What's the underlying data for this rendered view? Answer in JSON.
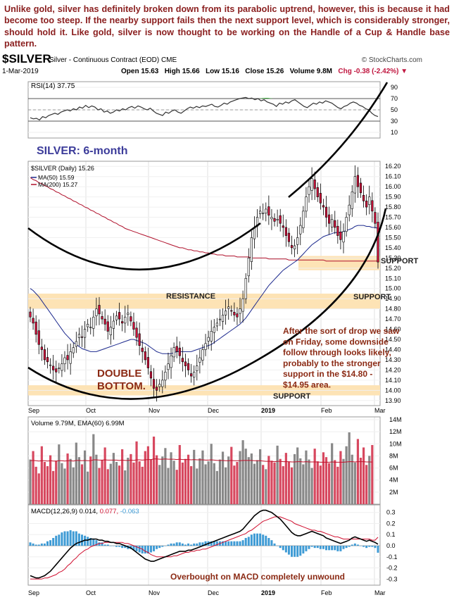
{
  "commentary": "Unlike gold, silver has definitely broken down from its parabolic uptrend, however, this is because it had become too steep. If the nearby support fails then the next support level, which is considerably stronger, should hold it. Like gold, silver is now thought to be working on the Handle of a Cup & Handle base pattern.",
  "header": {
    "symbol": "$SILVER",
    "description": "Silver - Continuous Contract (EOD) CME",
    "brand": "© StockCharts.com",
    "date": "1-Mar-2019",
    "ohlc": {
      "open": "Open 15.63",
      "high": "High 15.66",
      "low": "Low 15.16",
      "close": "Close 15.26",
      "volume": "Volume 9.8M",
      "change": "Chg -0.38 (-2.42%)"
    }
  },
  "annotations": {
    "chart_title": "SILVER: 6-month",
    "double_bottom_1": "DOUBLE",
    "double_bottom_2": "BOTTOM.",
    "resistance": "RESISTANCE",
    "support_top": "SUPPORT",
    "support_mid": "SUPPORT",
    "support_bottom": "SUPPORT",
    "commentary_lines": [
      "After the sort of drop we saw",
      "on Friday, some downside",
      "follow through looks likely,",
      "probably to the stronger",
      "support in the $14.80 -",
      "$14.95 area."
    ],
    "macd_note": "Overbought on MACD completely unwound"
  },
  "colors": {
    "annotation_brown": "#8b2a14",
    "title_blue": "#3c3c9a",
    "support_band": "#fde3b5",
    "up_candle": "#ffffff",
    "down_candle": "#d0103a",
    "ma50": "#1d2a8e",
    "ma200": "#b0102b",
    "volume_up": "#888888",
    "volume_down": "#d7485f",
    "histogram": "#3f9bd5"
  },
  "chart_data": [
    {
      "type": "line",
      "panel": "RSI",
      "legend": "RSI(14) 37.75",
      "yticks": [
        10,
        30,
        50,
        70,
        90
      ],
      "ylim": [
        0,
        100
      ],
      "reference_levels": [
        70,
        50,
        30
      ],
      "values": [
        36,
        34,
        35,
        32,
        38,
        36,
        40,
        42,
        44,
        42,
        46,
        48,
        50,
        48,
        52,
        50,
        55,
        53,
        58,
        54,
        57,
        55,
        50,
        52,
        46,
        48,
        44,
        46,
        50,
        48,
        52,
        50,
        54,
        56,
        53,
        57,
        55,
        52,
        50,
        53,
        48,
        44,
        42,
        40,
        46,
        44,
        48,
        50,
        46,
        44,
        48,
        52,
        55,
        53,
        56,
        54,
        57,
        56,
        58,
        60,
        56,
        55,
        58,
        62,
        60,
        64,
        66,
        68,
        70,
        71,
        72,
        70,
        71,
        68,
        70,
        66,
        68,
        64,
        62,
        60,
        56,
        62,
        60,
        64,
        62,
        66,
        68,
        64,
        60,
        56,
        54,
        58,
        62,
        60,
        64,
        62,
        66,
        64,
        62,
        58,
        54,
        52,
        56,
        58,
        62,
        64,
        62,
        58,
        56,
        52,
        50,
        44,
        40,
        38
      ]
    },
    {
      "type": "candlestick",
      "panel": "Price",
      "legend": [
        "$SILVER (Daily) 15.26",
        "MA(50) 15.59",
        "MA(200) 15.27"
      ],
      "ylim": [
        13.85,
        16.25
      ],
      "yticks": [
        13.9,
        14.0,
        14.1,
        14.2,
        14.3,
        14.4,
        14.5,
        14.6,
        14.7,
        14.8,
        14.9,
        15.0,
        15.1,
        15.2,
        15.3,
        15.4,
        15.5,
        15.6,
        15.7,
        15.8,
        15.9,
        16.0,
        16.1,
        16.2
      ],
      "xticks": [
        "Sep",
        "Oct",
        "Nov",
        "Dec",
        "2019",
        "Feb",
        "Mar"
      ],
      "closes": [
        14.72,
        14.66,
        14.55,
        14.45,
        14.4,
        14.3,
        14.28,
        14.25,
        14.2,
        14.18,
        14.22,
        14.26,
        14.32,
        14.3,
        14.38,
        14.42,
        14.48,
        14.55,
        14.52,
        14.6,
        14.65,
        14.62,
        14.72,
        14.8,
        14.75,
        14.7,
        14.65,
        14.58,
        14.62,
        14.68,
        14.73,
        14.7,
        14.66,
        14.72,
        14.76,
        14.68,
        14.6,
        14.52,
        14.44,
        14.38,
        14.3,
        14.22,
        14.12,
        14.02,
        14.0,
        14.06,
        14.1,
        14.18,
        14.26,
        14.34,
        14.42,
        14.38,
        14.34,
        14.28,
        14.24,
        14.2,
        14.14,
        14.18,
        14.24,
        14.32,
        14.4,
        14.46,
        14.52,
        14.58,
        14.62,
        14.66,
        14.7,
        14.74,
        14.78,
        14.82,
        14.78,
        14.74,
        14.72,
        14.8,
        14.9,
        15.1,
        15.3,
        15.5,
        15.6,
        15.7,
        15.76,
        15.74,
        15.78,
        15.72,
        15.7,
        15.66,
        15.68,
        15.64,
        15.6,
        15.52,
        15.46,
        15.4,
        15.42,
        15.5,
        15.62,
        15.76,
        15.9,
        16.0,
        16.08,
        15.98,
        15.9,
        15.84,
        15.8,
        15.7,
        15.64,
        15.68,
        15.6,
        15.52,
        15.48,
        15.56,
        15.7,
        15.82,
        15.95,
        16.1,
        16.0,
        15.94,
        15.86,
        15.8,
        15.9,
        15.76,
        15.64,
        15.26
      ],
      "ma50": [
        15.0,
        14.98,
        14.95,
        14.92,
        14.88,
        14.84,
        14.8,
        14.76,
        14.72,
        14.68,
        14.64,
        14.6,
        14.56,
        14.53,
        14.5,
        14.47,
        14.45,
        14.43,
        14.41,
        14.4,
        14.39,
        14.38,
        14.38,
        14.38,
        14.39,
        14.4,
        14.41,
        14.42,
        14.43,
        14.44,
        14.45,
        14.46,
        14.47,
        14.48,
        14.49,
        14.5,
        14.5,
        14.49,
        14.48,
        14.47,
        14.46,
        14.44,
        14.42,
        14.4,
        14.38,
        14.37,
        14.36,
        14.36,
        14.36,
        14.36,
        14.37,
        14.38,
        14.38,
        14.38,
        14.38,
        14.38,
        14.38,
        14.39,
        14.4,
        14.41,
        14.42,
        14.43,
        14.44,
        14.45,
        14.47,
        14.49,
        14.51,
        14.53,
        14.55,
        14.57,
        14.59,
        14.61,
        14.63,
        14.65,
        14.68,
        14.71,
        14.75,
        14.79,
        14.83,
        14.87,
        14.91,
        14.95,
        14.99,
        15.03,
        15.06,
        15.09,
        15.12,
        15.15,
        15.18,
        15.2,
        15.22,
        15.24,
        15.26,
        15.28,
        15.31,
        15.34,
        15.37,
        15.4,
        15.43,
        15.45,
        15.47,
        15.49,
        15.51,
        15.52,
        15.53,
        15.54,
        15.55,
        15.55,
        15.55,
        15.56,
        15.57,
        15.58,
        15.59,
        15.61,
        15.62,
        15.62,
        15.62,
        15.61,
        15.61,
        15.6,
        15.6,
        15.59
      ],
      "ma200": [
        16.09,
        16.07,
        16.06,
        16.04,
        16.03,
        16.01,
        16.0,
        15.98,
        15.97,
        15.95,
        15.94,
        15.92,
        15.91,
        15.89,
        15.88,
        15.86,
        15.85,
        15.83,
        15.82,
        15.8,
        15.79,
        15.77,
        15.76,
        15.74,
        15.73,
        15.71,
        15.7,
        15.68,
        15.67,
        15.65,
        15.64,
        15.62,
        15.61,
        15.59,
        15.58,
        15.57,
        15.56,
        15.55,
        15.54,
        15.53,
        15.52,
        15.51,
        15.5,
        15.49,
        15.48,
        15.47,
        15.46,
        15.45,
        15.44,
        15.43,
        15.42,
        15.41,
        15.4,
        15.4,
        15.39,
        15.38,
        15.38,
        15.37,
        15.37,
        15.36,
        15.36,
        15.35,
        15.35,
        15.34,
        15.34,
        15.33,
        15.33,
        15.33,
        15.32,
        15.32,
        15.32,
        15.32,
        15.31,
        15.31,
        15.31,
        15.31,
        15.31,
        15.3,
        15.3,
        15.3,
        15.3,
        15.3,
        15.3,
        15.29,
        15.29,
        15.29,
        15.29,
        15.29,
        15.29,
        15.29,
        15.28,
        15.28,
        15.28,
        15.28,
        15.28,
        15.28,
        15.28,
        15.28,
        15.28,
        15.28,
        15.28,
        15.28,
        15.28,
        15.27,
        15.27,
        15.27,
        15.27,
        15.27,
        15.27,
        15.27,
        15.27,
        15.27,
        15.27,
        15.27,
        15.27,
        15.27,
        15.27,
        15.27,
        15.27,
        15.27,
        15.27,
        15.27
      ],
      "support_bands": [
        [
          15.18,
          15.32
        ],
        [
          14.8,
          14.95
        ],
        [
          13.95,
          14.05
        ]
      ]
    },
    {
      "type": "bar",
      "panel": "Volume",
      "legend": "Volume 9.79M, EMA(60) 6.99M",
      "unit": "M",
      "yticks": [
        2,
        4,
        6,
        8,
        10,
        12,
        14
      ],
      "ylim": [
        0,
        14
      ],
      "values": [
        7.4,
        8.8,
        6.2,
        5.1,
        9.6,
        7.0,
        6.3,
        8.1,
        5.5,
        7.2,
        9.9,
        6.8,
        5.9,
        8.4,
        7.5,
        6.1,
        10.2,
        7.8,
        6.6,
        8.9,
        5.4,
        7.9,
        11.6,
        8.2,
        6.0,
        7.3,
        9.4,
        5.8,
        6.7,
        8.5,
        7.0,
        6.4,
        9.1,
        5.6,
        7.7,
        8.3,
        6.9,
        10.4,
        7.1,
        6.2,
        8.8,
        9.6,
        7.4,
        11.2,
        8.1,
        6.5,
        7.9,
        9.3,
        6.0,
        8.6,
        7.2,
        5.7,
        9.8,
        6.9,
        7.5,
        8.2,
        6.3,
        9.0,
        5.9,
        7.6,
        8.9,
        6.6,
        7.1,
        10.0,
        6.8,
        5.5,
        7.4,
        8.7,
        6.1,
        7.9,
        9.5,
        6.4,
        7.0,
        8.8,
        10.6,
        9.2,
        7.8,
        8.4,
        6.7,
        7.3,
        9.1,
        6.5,
        5.8,
        8.0,
        7.2,
        6.9,
        9.7,
        7.5,
        6.3,
        8.5,
        7.0,
        6.1,
        8.3,
        9.4,
        7.6,
        6.6,
        8.9,
        7.4,
        6.0,
        9.2,
        7.1,
        6.4,
        8.6,
        7.8,
        6.8,
        10.1,
        7.3,
        6.2,
        8.8,
        7.5,
        9.6,
        11.9,
        8.2,
        6.9,
        10.8,
        7.7,
        9.4,
        6.5,
        8.0,
        9.8
      ],
      "ema": [
        7.2,
        7.25,
        7.2,
        7.15,
        7.2,
        7.2,
        7.15,
        7.2,
        7.15,
        7.15,
        7.2,
        7.2,
        7.15,
        7.2,
        7.2,
        7.15,
        7.25,
        7.25,
        7.2,
        7.25,
        7.2,
        7.2,
        7.35,
        7.35,
        7.3,
        7.3,
        7.35,
        7.3,
        7.3,
        7.3,
        7.3,
        7.25,
        7.3,
        7.25,
        7.25,
        7.3,
        7.25,
        7.35,
        7.35,
        7.3,
        7.35,
        7.4,
        7.4,
        7.5,
        7.5,
        7.45,
        7.45,
        7.5,
        7.45,
        7.45,
        7.45,
        7.4,
        7.45,
        7.4,
        7.4,
        7.4,
        7.35,
        7.4,
        7.35,
        7.35,
        7.35,
        7.3,
        7.3,
        7.35,
        7.3,
        7.25,
        7.25,
        7.25,
        7.2,
        7.2,
        7.25,
        7.2,
        7.2,
        7.2,
        7.25,
        7.25,
        7.25,
        7.25,
        7.2,
        7.2,
        7.2,
        7.15,
        7.1,
        7.1,
        7.1,
        7.05,
        7.1,
        7.1,
        7.05,
        7.05,
        7.05,
        7.0,
        7.0,
        7.05,
        7.05,
        7.0,
        7.05,
        7.0,
        7.0,
        7.0,
        7.0,
        6.95,
        6.95,
        6.95,
        6.95,
        7.0,
        6.95,
        6.95,
        6.95,
        6.95,
        7.0,
        7.05,
        7.05,
        7.0,
        7.05,
        7.05,
        7.05,
        7.0,
        7.0,
        6.99
      ]
    },
    {
      "type": "line",
      "panel": "MACD",
      "legend": [
        "MACD(12,26,9)",
        "0.014",
        "0.077",
        "-0.063"
      ],
      "yticks": [
        -0.3,
        -0.2,
        -0.1,
        0.0,
        0.1,
        0.2,
        0.3
      ],
      "ylim": [
        -0.33,
        0.33
      ],
      "macd": [
        -0.27,
        -0.28,
        -0.29,
        -0.29,
        -0.28,
        -0.27,
        -0.25,
        -0.23,
        -0.2,
        -0.17,
        -0.14,
        -0.11,
        -0.08,
        -0.05,
        -0.02,
        0.0,
        0.02,
        0.03,
        0.04,
        0.05,
        0.05,
        0.06,
        0.06,
        0.06,
        0.05,
        0.05,
        0.04,
        0.04,
        0.03,
        0.03,
        0.02,
        0.02,
        0.01,
        0.0,
        -0.01,
        -0.02,
        -0.04,
        -0.06,
        -0.08,
        -0.1,
        -0.12,
        -0.13,
        -0.14,
        -0.14,
        -0.13,
        -0.12,
        -0.11,
        -0.1,
        -0.09,
        -0.08,
        -0.07,
        -0.06,
        -0.05,
        -0.05,
        -0.05,
        -0.04,
        -0.04,
        -0.03,
        -0.02,
        -0.01,
        0.0,
        0.01,
        0.02,
        0.03,
        0.04,
        0.05,
        0.06,
        0.07,
        0.08,
        0.09,
        0.1,
        0.11,
        0.12,
        0.13,
        0.15,
        0.18,
        0.21,
        0.24,
        0.27,
        0.29,
        0.31,
        0.32,
        0.32,
        0.31,
        0.3,
        0.28,
        0.26,
        0.24,
        0.21,
        0.18,
        0.15,
        0.12,
        0.1,
        0.09,
        0.09,
        0.1,
        0.11,
        0.12,
        0.13,
        0.12,
        0.11,
        0.1,
        0.09,
        0.07,
        0.06,
        0.05,
        0.04,
        0.03,
        0.02,
        0.03,
        0.04,
        0.05,
        0.07,
        0.08,
        0.07,
        0.06,
        0.05,
        0.04,
        0.05,
        0.04,
        0.03,
        0.014
      ],
      "signal": [
        -0.3,
        -0.3,
        -0.3,
        -0.3,
        -0.3,
        -0.29,
        -0.29,
        -0.28,
        -0.27,
        -0.26,
        -0.24,
        -0.23,
        -0.21,
        -0.18,
        -0.16,
        -0.13,
        -0.11,
        -0.08,
        -0.06,
        -0.04,
        -0.03,
        -0.01,
        0.0,
        0.01,
        0.02,
        0.02,
        0.03,
        0.03,
        0.03,
        0.03,
        0.03,
        0.03,
        0.03,
        0.02,
        0.02,
        0.01,
        0.0,
        -0.01,
        -0.02,
        -0.03,
        -0.05,
        -0.06,
        -0.08,
        -0.09,
        -0.1,
        -0.1,
        -0.1,
        -0.1,
        -0.1,
        -0.1,
        -0.09,
        -0.09,
        -0.08,
        -0.07,
        -0.06,
        -0.06,
        -0.05,
        -0.05,
        -0.04,
        -0.04,
        -0.03,
        -0.03,
        -0.02,
        -0.01,
        0.0,
        0.01,
        0.02,
        0.03,
        0.04,
        0.05,
        0.06,
        0.07,
        0.08,
        0.09,
        0.1,
        0.11,
        0.13,
        0.14,
        0.16,
        0.18,
        0.2,
        0.22,
        0.23,
        0.24,
        0.25,
        0.26,
        0.26,
        0.26,
        0.25,
        0.24,
        0.23,
        0.22,
        0.2,
        0.19,
        0.18,
        0.17,
        0.16,
        0.15,
        0.14,
        0.14,
        0.13,
        0.13,
        0.12,
        0.11,
        0.1,
        0.09,
        0.08,
        0.08,
        0.07,
        0.06,
        0.06,
        0.06,
        0.06,
        0.06,
        0.06,
        0.06,
        0.06,
        0.06,
        0.06,
        0.05,
        0.05,
        0.077
      ],
      "note": "Overbought on MACD completely unwound"
    }
  ]
}
